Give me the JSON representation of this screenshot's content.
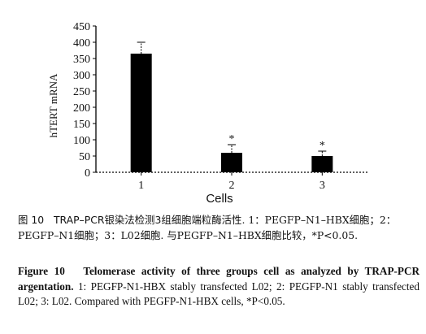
{
  "chart_data": {
    "type": "bar",
    "categories": [
      "1",
      "2",
      "3"
    ],
    "values": [
      365,
      60,
      50
    ],
    "errors": [
      35,
      25,
      15
    ],
    "annotations": [
      "",
      "*",
      "*"
    ],
    "ylabel": "hTERT mRNA",
    "xlabel": "Cells",
    "ylim": [
      0,
      450
    ],
    "yticks": [
      0,
      50,
      100,
      150,
      200,
      250,
      300,
      350,
      400,
      450
    ],
    "bar_color": "#000000",
    "grid": false
  },
  "caption_zh": {
    "fig_label": "图 10",
    "title": "TRAP–PCR银染法检测3组细胞端粒酶活性",
    "description": ". 1：PEGFP–N1–HBX细胞；2：PEGFP–N1细胞；3：L02细胞. 与PEGFP–N1–HBX细胞比较，*P<0.05."
  },
  "caption_en": {
    "fig_label": "Figure 10",
    "title": "Telomerase activity of three groups cell as analyzed by TRAP-PCR argentation.",
    "description": "1: PEGFP-N1-HBX stably transfected L02; 2: PEGFP-N1 stably transfected L02; 3: L02. Compared with PEGFP-N1-HBX cells, *P<0.05."
  }
}
